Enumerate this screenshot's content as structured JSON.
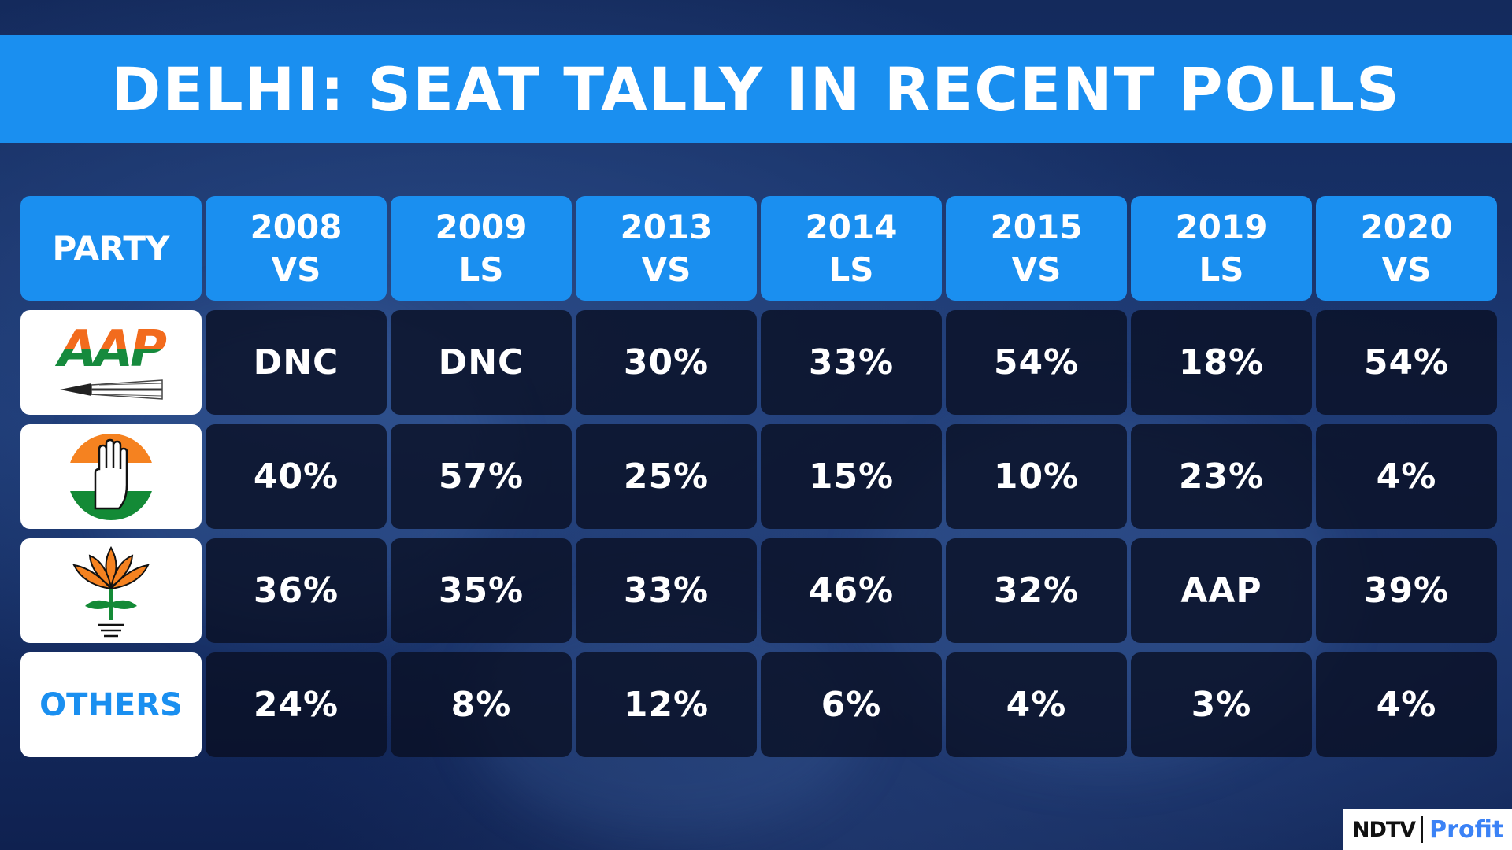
{
  "title": "DELHI: SEAT TALLY IN RECENT POLLS",
  "colors": {
    "accent": "#1a8ff0",
    "cell_bg": "#0a1024",
    "logo_bg": "#ffffff"
  },
  "chart_data": {
    "type": "table",
    "title": "DELHI: SEAT TALLY IN RECENT POLLS",
    "header_first": "PARTY",
    "columns": [
      {
        "year": "2008",
        "kind": "VS"
      },
      {
        "year": "2009",
        "kind": "LS"
      },
      {
        "year": "2013",
        "kind": "VS"
      },
      {
        "year": "2014",
        "kind": "LS"
      },
      {
        "year": "2015",
        "kind": "VS"
      },
      {
        "year": "2019",
        "kind": "LS"
      },
      {
        "year": "2020",
        "kind": "VS"
      }
    ],
    "rows": [
      {
        "party_logo": "aap-logo",
        "values": [
          "DNC",
          "DNC",
          "30%",
          "33%",
          "54%",
          "18%",
          "54%"
        ]
      },
      {
        "party_logo": "congress-logo",
        "values": [
          "40%",
          "57%",
          "25%",
          "15%",
          "10%",
          "23%",
          "4%"
        ]
      },
      {
        "party_logo": "bjp-logo",
        "values": [
          "36%",
          "35%",
          "33%",
          "46%",
          "32%",
          "AAP",
          "39%"
        ]
      },
      {
        "party_label": "OTHERS",
        "values": [
          "24%",
          "8%",
          "12%",
          "6%",
          "4%",
          "3%",
          "4%"
        ]
      }
    ]
  },
  "logos": {
    "aap_text": "AAP",
    "brand_ndtv": "NDTV",
    "brand_profit": "Profit"
  }
}
